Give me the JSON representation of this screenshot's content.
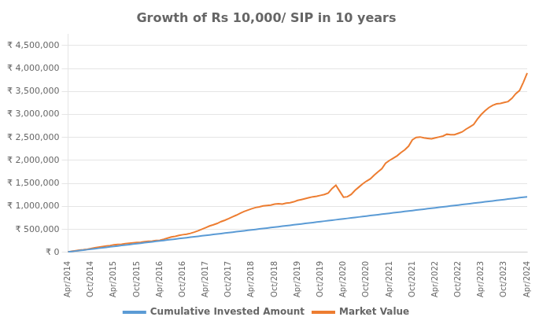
{
  "chart_data": {
    "type": "line",
    "title": "Growth of Rs 10,000/ SIP in 10 years",
    "categories": [
      "Apr/2014",
      null,
      null,
      null,
      null,
      null,
      "Oct/2014",
      null,
      null,
      null,
      null,
      null,
      "Apr/2015",
      null,
      null,
      null,
      null,
      null,
      "Oct/2015",
      null,
      null,
      null,
      null,
      null,
      "Apr/2016",
      null,
      null,
      null,
      null,
      null,
      "Oct/2016",
      null,
      null,
      null,
      null,
      null,
      "Apr/2017",
      null,
      null,
      null,
      null,
      null,
      "Oct/2017",
      null,
      null,
      null,
      null,
      null,
      "Apr/2018",
      null,
      null,
      null,
      null,
      null,
      "Oct/2018",
      null,
      null,
      null,
      null,
      null,
      "Apr/2019",
      null,
      null,
      null,
      null,
      null,
      "Oct/2019",
      null,
      null,
      null,
      null,
      null,
      "Apr/2020",
      null,
      null,
      null,
      null,
      null,
      "Oct/2020",
      null,
      null,
      null,
      null,
      null,
      "Apr/2021",
      null,
      null,
      null,
      null,
      null,
      "Oct/2021",
      null,
      null,
      null,
      null,
      null,
      "Apr/2022",
      null,
      null,
      null,
      null,
      null,
      "Oct/2022",
      null,
      null,
      null,
      null,
      null,
      "Apr/2023",
      null,
      null,
      null,
      null,
      null,
      "Oct/2023",
      null,
      null,
      null,
      null,
      null,
      "Apr/2024"
    ],
    "series": [
      {
        "name": "Cumulative Invested Amount",
        "color": "#5b9bd5",
        "values": [
          10000,
          20000,
          30000,
          40000,
          50000,
          60000,
          70000,
          80000,
          90000,
          100000,
          110000,
          120000,
          130000,
          140000,
          150000,
          160000,
          170000,
          180000,
          190000,
          200000,
          210000,
          220000,
          230000,
          240000,
          250000,
          260000,
          270000,
          280000,
          290000,
          300000,
          310000,
          320000,
          330000,
          340000,
          350000,
          360000,
          370000,
          380000,
          390000,
          400000,
          410000,
          420000,
          430000,
          440000,
          450000,
          460000,
          470000,
          480000,
          490000,
          500000,
          510000,
          520000,
          530000,
          540000,
          550000,
          560000,
          570000,
          580000,
          590000,
          600000,
          610000,
          620000,
          630000,
          640000,
          650000,
          660000,
          670000,
          680000,
          690000,
          700000,
          710000,
          720000,
          730000,
          740000,
          750000,
          760000,
          770000,
          780000,
          790000,
          800000,
          810000,
          820000,
          830000,
          840000,
          850000,
          860000,
          870000,
          880000,
          890000,
          900000,
          910000,
          920000,
          930000,
          940000,
          950000,
          960000,
          970000,
          980000,
          990000,
          1000000,
          1010000,
          1020000,
          1030000,
          1040000,
          1050000,
          1060000,
          1070000,
          1080000,
          1090000,
          1100000,
          1110000,
          1120000,
          1130000,
          1140000,
          1150000,
          1160000,
          1170000,
          1180000,
          1190000,
          1200000,
          1210000
        ]
      },
      {
        "name": "Market Value",
        "color": "#ed7d31",
        "values": [
          10200,
          22000,
          35000,
          48000,
          56000,
          68000,
          85000,
          100000,
          115000,
          128000,
          138000,
          148000,
          165000,
          172000,
          178000,
          192000,
          200000,
          208000,
          215000,
          222000,
          235000,
          242000,
          248000,
          258000,
          265000,
          285000,
          310000,
          335000,
          350000,
          370000,
          385000,
          395000,
          415000,
          440000,
          470000,
          505000,
          540000,
          575000,
          600000,
          630000,
          670000,
          700000,
          735000,
          775000,
          810000,
          850000,
          890000,
          920000,
          950000,
          975000,
          990000,
          1010000,
          1020000,
          1030000,
          1050000,
          1060000,
          1050000,
          1070000,
          1080000,
          1100000,
          1130000,
          1150000,
          1170000,
          1190000,
          1210000,
          1220000,
          1240000,
          1260000,
          1290000,
          1390000,
          1460000,
          1330000,
          1200000,
          1210000,
          1260000,
          1350000,
          1420000,
          1490000,
          1550000,
          1600000,
          1680000,
          1750000,
          1820000,
          1940000,
          2000000,
          2050000,
          2100000,
          2170000,
          2230000,
          2310000,
          2450000,
          2500000,
          2510000,
          2490000,
          2480000,
          2470000,
          2490000,
          2510000,
          2530000,
          2570000,
          2560000,
          2560000,
          2590000,
          2620000,
          2680000,
          2730000,
          2780000,
          2900000,
          3000000,
          3080000,
          3150000,
          3200000,
          3230000,
          3240000,
          3260000,
          3280000,
          3350000,
          3450000,
          3520000,
          3700000,
          3900000
        ]
      }
    ],
    "ylim": [
      0,
      4750000
    ],
    "yticks": [
      {
        "value": 0,
        "label": "₹ 0"
      },
      {
        "value": 500000,
        "label": "₹ 500,000"
      },
      {
        "value": 1000000,
        "label": "₹ 1,000,000"
      },
      {
        "value": 1500000,
        "label": "₹ 1,500,000"
      },
      {
        "value": 2000000,
        "label": "₹ 2,000,000"
      },
      {
        "value": 2500000,
        "label": "₹ 2,500,000"
      },
      {
        "value": 3000000,
        "label": "₹ 3,000,000"
      },
      {
        "value": 3500000,
        "label": "₹ 3,500,000"
      },
      {
        "value": 4000000,
        "label": "₹ 4,000,000"
      },
      {
        "value": 4500000,
        "label": "₹ 4,500,000"
      }
    ],
    "grid": true,
    "legend": "bottom"
  }
}
